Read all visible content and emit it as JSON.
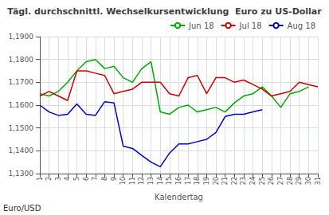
{
  "chart_data": {
    "type": "line",
    "title": "Tägl. durchschnittl. Wechselkursentwicklung  Euro zu US-Dollar",
    "xlabel": "Kalendertag",
    "ylabel": "Euro/USD",
    "x": [
      1,
      2,
      3,
      4,
      5,
      6,
      7,
      8,
      9,
      10,
      11,
      12,
      13,
      14,
      15,
      16,
      17,
      18,
      19,
      20,
      21,
      22,
      23,
      24,
      25,
      26,
      27,
      28,
      29,
      30,
      31
    ],
    "series": [
      {
        "name": "Jun 18",
        "color": "#00aa00",
        "values": [
          1.165,
          1.164,
          1.166,
          1.17,
          1.175,
          1.179,
          1.18,
          1.176,
          1.177,
          1.172,
          1.17,
          1.176,
          1.179,
          1.157,
          1.156,
          1.159,
          1.16,
          1.157,
          1.158,
          1.159,
          1.157,
          1.161,
          1.164,
          1.165,
          1.168,
          1.164,
          1.159,
          1.165,
          1.166,
          1.168,
          null
        ]
      },
      {
        "name": "Jul 18",
        "color": "#cc0000",
        "values": [
          1.164,
          1.166,
          1.164,
          1.162,
          1.175,
          1.175,
          1.174,
          1.173,
          1.165,
          1.166,
          1.167,
          1.17,
          1.17,
          1.17,
          1.165,
          1.164,
          1.172,
          1.173,
          1.165,
          1.172,
          1.172,
          1.17,
          1.171,
          1.169,
          1.167,
          1.164,
          1.165,
          1.166,
          1.17,
          1.169,
          1.168
        ]
      },
      {
        "name": "Aug 18",
        "color": "#0000cc",
        "values": [
          1.16,
          1.157,
          1.1555,
          1.156,
          1.1605,
          1.156,
          1.1555,
          1.1615,
          1.161,
          1.142,
          1.141,
          1.138,
          1.135,
          1.133,
          1.139,
          1.143,
          1.143,
          1.144,
          1.145,
          1.148,
          1.155,
          1.156,
          1.156,
          1.157,
          1.158,
          null,
          null,
          null,
          null,
          null,
          null
        ]
      }
    ],
    "xlim": [
      1,
      31
    ],
    "xticks": [
      1,
      2,
      3,
      4,
      5,
      6,
      7,
      8,
      9,
      10,
      11,
      12,
      13,
      14,
      15,
      16,
      17,
      18,
      19,
      20,
      21,
      22,
      23,
      24,
      25,
      26,
      27,
      28,
      29,
      30,
      31
    ],
    "ylim": [
      1.13,
      1.19
    ],
    "yticks": [
      {
        "value": 1.13,
        "label": "1,1300"
      },
      {
        "value": 1.14,
        "label": "1,1400"
      },
      {
        "value": 1.15,
        "label": "1,1500"
      },
      {
        "value": 1.16,
        "label": "1,1600"
      },
      {
        "value": 1.17,
        "label": "1,1700"
      },
      {
        "value": 1.18,
        "label": "1,1800"
      },
      {
        "value": 1.19,
        "label": "1,1900"
      }
    ],
    "grid": true,
    "legend": "upper right"
  }
}
